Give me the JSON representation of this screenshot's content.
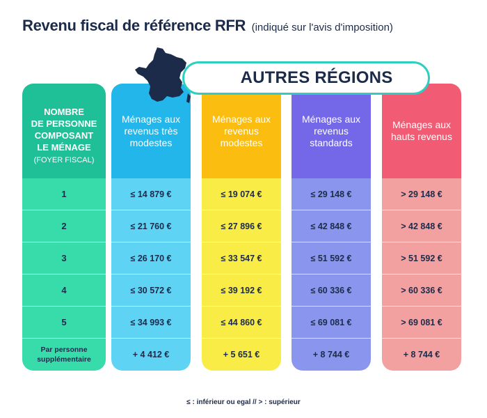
{
  "title": {
    "main": "Revenu fiscal de référence RFR",
    "sub": "(indiqué sur l'avis d'imposition)"
  },
  "banner": "AUTRES RÉGIONS",
  "map_icon": "france-map-icon",
  "columns": {
    "household": {
      "header_lines": [
        "NOMBRE",
        "DE PERSONNE",
        "COMPOSANT",
        "LE MÉNAGE"
      ],
      "header_small": "(FOYER FISCAL)",
      "rows": [
        "1",
        "2",
        "3",
        "4",
        "5",
        "Par personne supplémentaire"
      ],
      "color": "#1fbf98"
    },
    "tres_modestes": {
      "header": "Ménages aux revenus très modestes",
      "rows": [
        "≤ 14 879 €",
        "≤ 21 760 €",
        "≤ 26 170 €",
        "≤ 30 572 €",
        "≤ 34 993 €",
        "+ 4 412 €"
      ],
      "color": "#22b6ea"
    },
    "modestes": {
      "header": "Ménages aux revenus modestes",
      "rows": [
        "≤ 19 074 €",
        "≤ 27 896 €",
        "≤ 33 547 €",
        "≤ 39 192 €",
        "≤ 44 860 €",
        "+ 5 651 €"
      ],
      "color": "#fbbd0f"
    },
    "standards": {
      "header": "Ménages aux revenus standards",
      "rows": [
        "≤ 29 148 €",
        "≤ 42 848 €",
        "≤ 51 592 €",
        "≤ 60 336 €",
        "≤ 69 081 €",
        "+ 8 744 €"
      ],
      "color": "#7468e9"
    },
    "hauts": {
      "header": "Ménages aux hauts revenus",
      "rows": [
        "> 29 148 €",
        "> 42 848 €",
        "> 51 592 €",
        "> 60 336 €",
        "> 69 081 €",
        "+ 8 744 €"
      ],
      "color": "#f15b73"
    }
  },
  "legend": "≤ : inférieur ou egal // > : supérieur"
}
